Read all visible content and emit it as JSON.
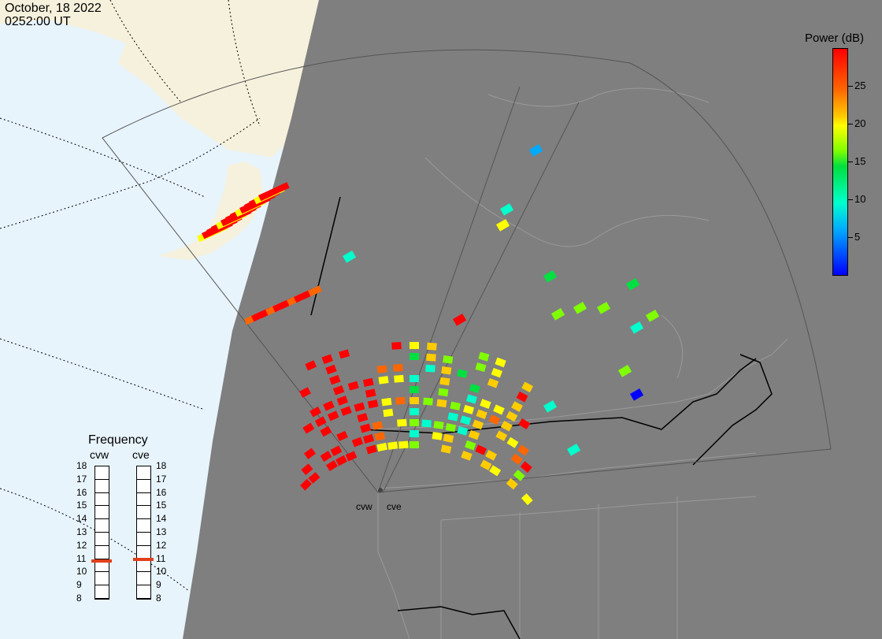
{
  "header": {
    "date": "October, 18 2022",
    "time": "0252:00 UT"
  },
  "colorbar": {
    "title": "Power (dB)",
    "ticks": [
      {
        "label": "25",
        "value": 25
      },
      {
        "label": "20",
        "value": 20
      },
      {
        "label": "15",
        "value": 15
      },
      {
        "label": "10",
        "value": 10
      },
      {
        "label": "5",
        "value": 5
      }
    ],
    "range": [
      0,
      30
    ],
    "colors": [
      "#0000ff",
      "#00aaff",
      "#00ffcc",
      "#00e040",
      "#80ff00",
      "#ffff00",
      "#ffcc00",
      "#ff6600",
      "#ff0000"
    ]
  },
  "frequency": {
    "title": "Frequency",
    "radars": [
      {
        "code": "cvw",
        "value": 10.8
      },
      {
        "code": "cve",
        "value": 10.9
      }
    ],
    "scale": [
      "18",
      "17",
      "16",
      "15",
      "14",
      "13",
      "12",
      "11",
      "10",
      "9",
      "8"
    ],
    "marker_color": "#e0401a"
  },
  "sites": [
    {
      "label": "cvw"
    },
    {
      "label": "cve"
    }
  ],
  "map_colors": {
    "ocean_day": "#e8f4fc",
    "land_day": "#f6f1dc",
    "night": "#7f7f7f",
    "borders": "#9a9a9a"
  }
}
